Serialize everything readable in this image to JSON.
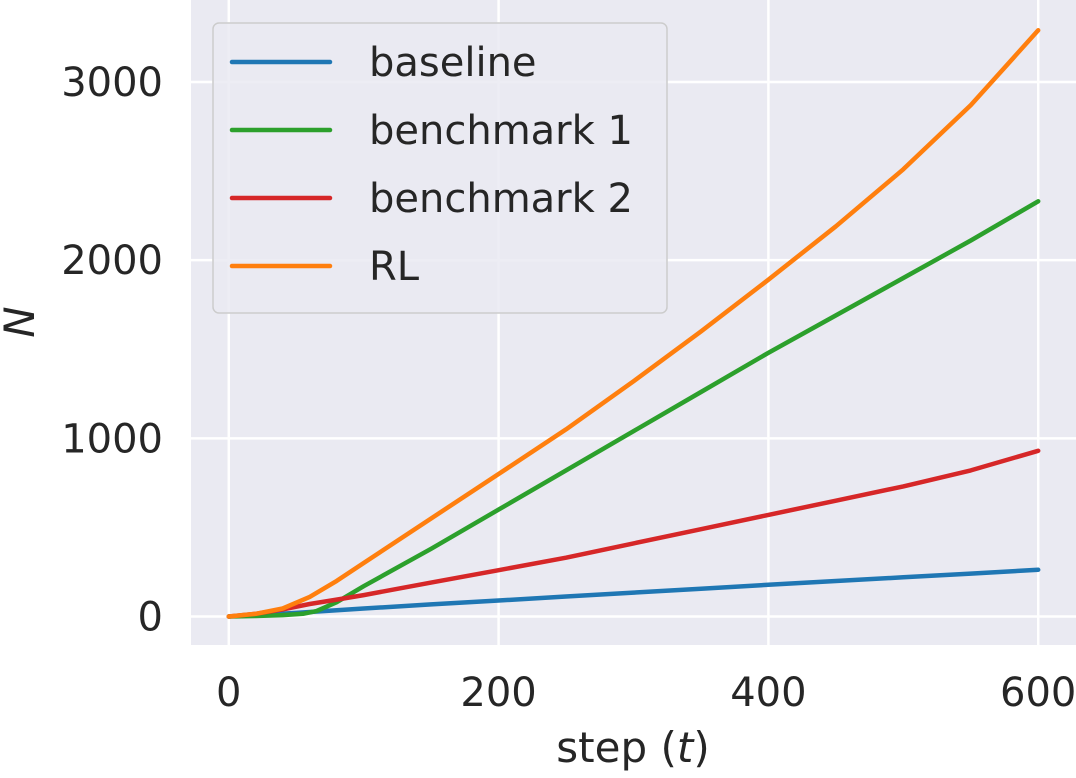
{
  "chart_data": {
    "type": "line",
    "title": "",
    "xlabel": "step (t)",
    "xlabel_parts": {
      "prefix": "step (",
      "var": "t",
      "suffix": ")"
    },
    "ylabel": "N",
    "xlim": [
      -28,
      628
    ],
    "ylim": [
      -160,
      3460
    ],
    "xticks": [
      0,
      200,
      400,
      600
    ],
    "yticks": [
      0,
      1000,
      2000,
      3000
    ],
    "grid": true,
    "legend_position": "top-left",
    "series": [
      {
        "name": "baseline",
        "color": "#1f77b4",
        "x": [
          0,
          20,
          50,
          100,
          150,
          200,
          250,
          300,
          350,
          400,
          450,
          500,
          550,
          600
        ],
        "y": [
          0,
          8,
          20,
          45,
          68,
          90,
          112,
          134,
          156,
          178,
          199,
          220,
          241,
          262
        ]
      },
      {
        "name": "benchmark 1",
        "color": "#2ca02c",
        "x": [
          0,
          20,
          40,
          55,
          65,
          80,
          100,
          150,
          200,
          250,
          300,
          350,
          400,
          450,
          500,
          550,
          600
        ],
        "y": [
          0,
          3,
          8,
          15,
          30,
          80,
          170,
          380,
          600,
          820,
          1040,
          1260,
          1480,
          1690,
          1900,
          2110,
          2330
        ]
      },
      {
        "name": "benchmark 2",
        "color": "#d62728",
        "x": [
          0,
          20,
          40,
          60,
          80,
          100,
          150,
          200,
          250,
          300,
          350,
          400,
          450,
          500,
          550,
          600
        ],
        "y": [
          0,
          15,
          40,
          70,
          95,
          120,
          190,
          260,
          330,
          410,
          490,
          570,
          650,
          730,
          820,
          930
        ]
      },
      {
        "name": "RL",
        "color": "#ff7f0e",
        "x": [
          0,
          20,
          40,
          60,
          80,
          100,
          150,
          200,
          250,
          300,
          350,
          400,
          450,
          500,
          550,
          600
        ],
        "y": [
          0,
          15,
          45,
          110,
          200,
          300,
          550,
          800,
          1050,
          1320,
          1600,
          1890,
          2190,
          2510,
          2870,
          3290
        ]
      }
    ]
  }
}
